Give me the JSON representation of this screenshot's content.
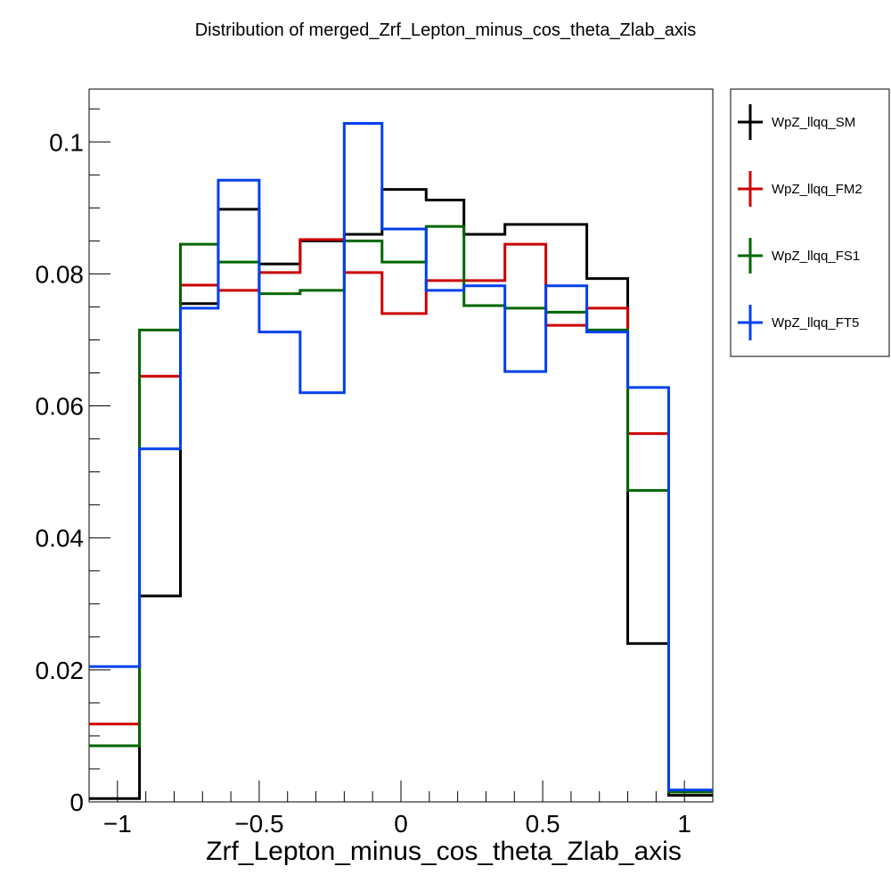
{
  "chart_data": {
    "type": "line",
    "title": "Distribution of merged_Zrf_Lepton_minus_cos_theta_Zlab_axis",
    "xlabel": "Zrf_Lepton_minus_cos_theta_Zlab_axis",
    "ylabel": "",
    "xlim": [
      -1.1,
      1.1
    ],
    "ylim": [
      0,
      0.108
    ],
    "x_tick_values": [
      -1,
      -0.5,
      0,
      0.5,
      1
    ],
    "x_tick_labels": [
      "−1",
      "−0.5",
      "0",
      "0.5",
      "1"
    ],
    "y_tick_values": [
      0,
      0.02,
      0.04,
      0.06,
      0.08,
      0.1
    ],
    "y_tick_labels": [
      "0",
      "0.02",
      "0.04",
      "0.06",
      "0.08",
      "0.1"
    ],
    "bin_edges": [
      -1.1,
      -0.9222,
      -0.7778,
      -0.6444,
      -0.5,
      -0.3556,
      -0.2,
      -0.0667,
      0.0889,
      0.2222,
      0.3667,
      0.5111,
      0.6556,
      0.8,
      0.9444,
      1.1
    ],
    "legend_placement": "outside-right",
    "grid": false,
    "series": [
      {
        "name": "WpZ_llqq_SM",
        "color": "#000000",
        "values": [
          0.0005,
          0.0312,
          0.0755,
          0.0898,
          0.0815,
          0.085,
          0.086,
          0.0928,
          0.0912,
          0.086,
          0.0875,
          0.0875,
          0.0793,
          0.024,
          0.001
        ]
      },
      {
        "name": "WpZ_llqq_FM2",
        "color": "#cc0000",
        "values": [
          0.0118,
          0.0645,
          0.0783,
          0.0775,
          0.0802,
          0.0852,
          0.0802,
          0.074,
          0.079,
          0.079,
          0.0845,
          0.0722,
          0.0748,
          0.0558,
          0.0015
        ]
      },
      {
        "name": "WpZ_llqq_FS1",
        "color": "#006600",
        "values": [
          0.0085,
          0.0715,
          0.0845,
          0.0818,
          0.077,
          0.0775,
          0.085,
          0.0818,
          0.0872,
          0.0752,
          0.0748,
          0.0742,
          0.0715,
          0.0472,
          0.0015
        ]
      },
      {
        "name": "WpZ_llqq_FT5",
        "color": "#0040ee",
        "values": [
          0.0205,
          0.0535,
          0.0748,
          0.0942,
          0.0712,
          0.062,
          0.1028,
          0.0868,
          0.0775,
          0.0782,
          0.0652,
          0.0782,
          0.0712,
          0.0628,
          0.0018
        ]
      }
    ]
  }
}
